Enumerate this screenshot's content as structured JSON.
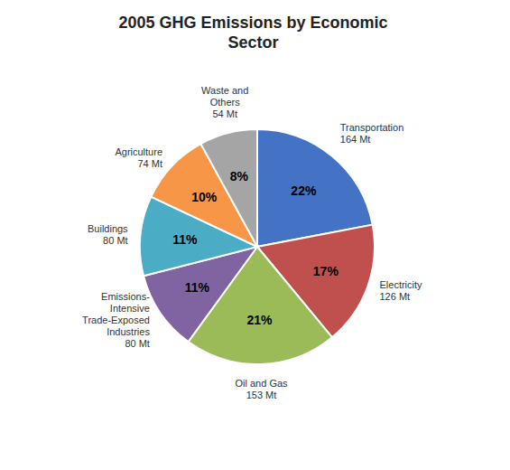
{
  "chart_data": {
    "type": "pie",
    "title": "2005 GHG Emissions by Economic\nSector",
    "categories": [
      "Transportation\n164 Mt",
      "Electricity\n126 Mt",
      "Oil and Gas\n153 Mt",
      "Emissions-\nIntensive\nTrade-Exposed\nIndustries\n80 Mt",
      "Buildings\n80 Mt",
      "Agriculture\n74 Mt",
      "Waste and\nOthers\n54 Mt"
    ],
    "values": [
      22,
      17,
      21,
      11,
      11,
      10,
      8
    ],
    "value_labels": [
      "22%",
      "17%",
      "21%",
      "11%",
      "11%",
      "10%",
      "8%"
    ],
    "colors": [
      "#4472C4",
      "#C0504D",
      "#9BBB59",
      "#8064A2",
      "#4BACC6",
      "#F79646",
      "#A5A5A5"
    ],
    "data_labels": true
  }
}
